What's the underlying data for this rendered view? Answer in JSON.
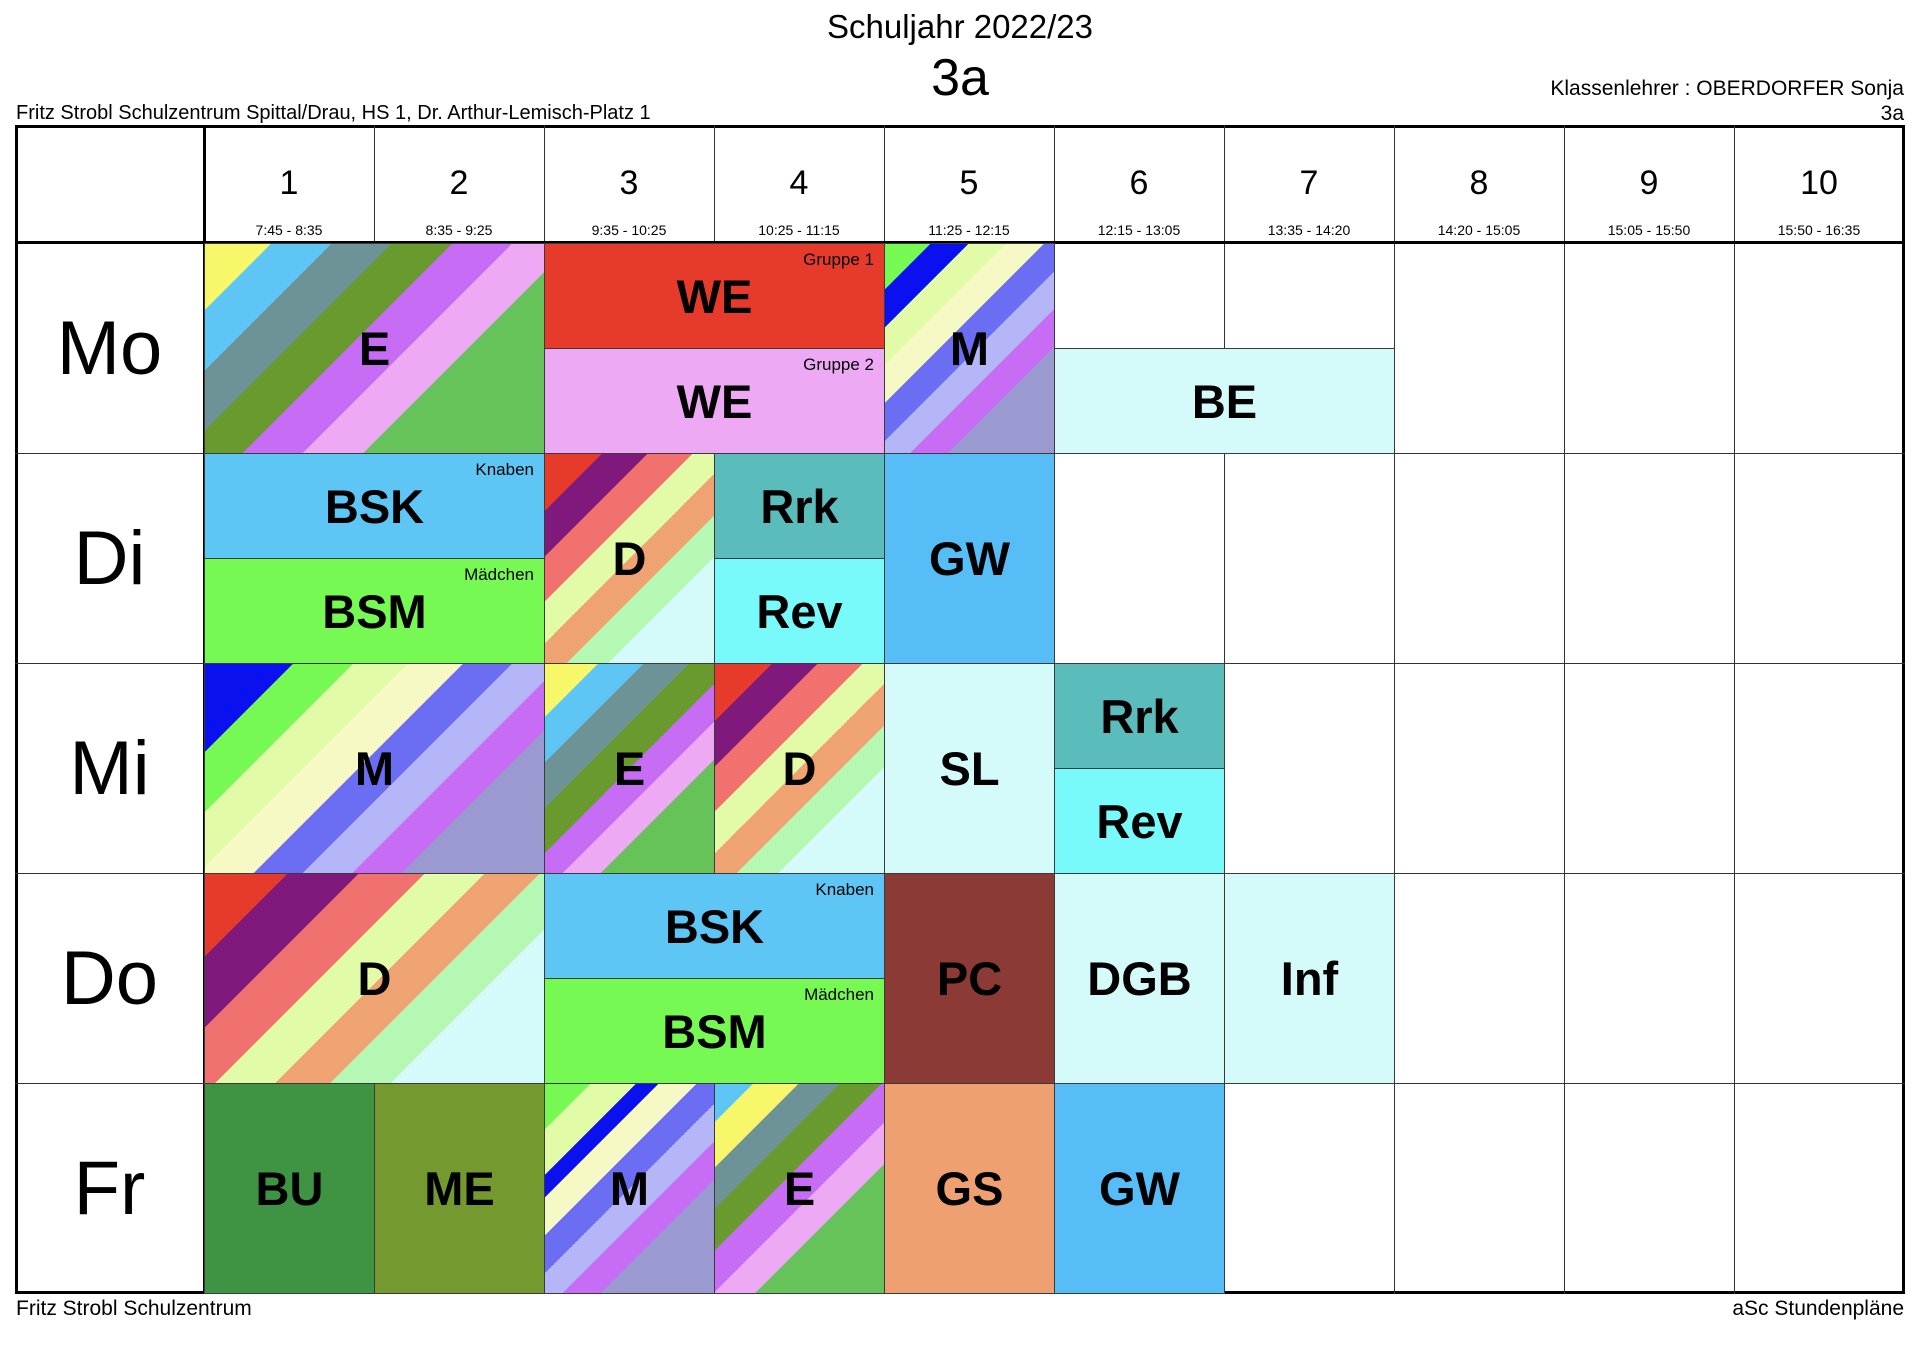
{
  "header": {
    "school_year": "Schuljahr 2022/23",
    "class_name": "3a",
    "school_address": "Fritz Strobl Schulzentrum Spittal/Drau, HS 1, Dr. Arthur-Lemisch-Platz 1",
    "class_teacher": "Klassenlehrer : OBERDORFER Sonja",
    "class_code": "3a"
  },
  "footer": {
    "left": "Fritz Strobl Schulzentrum",
    "right": "aSc Stundenpläne"
  },
  "periods": [
    {
      "num": "1",
      "time": "7:45 - 8:35"
    },
    {
      "num": "2",
      "time": "8:35 - 9:25"
    },
    {
      "num": "3",
      "time": "9:35 - 10:25"
    },
    {
      "num": "4",
      "time": "10:25 - 11:15"
    },
    {
      "num": "5",
      "time": "11:25 - 12:15"
    },
    {
      "num": "6",
      "time": "12:15 - 13:05"
    },
    {
      "num": "7",
      "time": "13:35 - 14:20"
    },
    {
      "num": "8",
      "time": "14:20 - 15:05"
    },
    {
      "num": "9",
      "time": "15:05 - 15:50"
    },
    {
      "num": "10",
      "time": "15:50 - 16:35"
    }
  ],
  "days": [
    "Mo",
    "Di",
    "Mi",
    "Do",
    "Fr"
  ],
  "groups": {
    "gruppe1": "Gruppe 1",
    "gruppe2": "Gruppe 2",
    "knaben": "Knaben",
    "maedchen": "Mädchen"
  },
  "lessons": {
    "mo_e": "E",
    "mo_we1": "WE",
    "mo_we2": "WE",
    "mo_m": "M",
    "mo_be": "BE",
    "di_bsk": "BSK",
    "di_bsm": "BSM",
    "di_d": "D",
    "di_rrk": "Rrk",
    "di_rev": "Rev",
    "di_gw": "GW",
    "mi_m": "M",
    "mi_e": "E",
    "mi_d": "D",
    "mi_sl": "SL",
    "mi_rrk": "Rrk",
    "mi_rev": "Rev",
    "do_d": "D",
    "do_bsk": "BSK",
    "do_bsm": "BSM",
    "do_pc": "PC",
    "do_dgb": "DGB",
    "do_inf": "Inf",
    "fr_bu": "BU",
    "fr_me": "ME",
    "fr_m": "M",
    "fr_e": "E",
    "fr_gs": "GS",
    "fr_gw": "GW"
  },
  "colors": {
    "we_group1": "#e63a2a",
    "we_group2": "#eea9f5",
    "be": "#d4fafa",
    "bsk": "#5ec6f5",
    "bsm": "#76f953",
    "rrk": "#5bbdbb",
    "rev": "#79fafa",
    "gw": "#56bdf6",
    "sl": "#d4fafa",
    "pc": "#8c3a36",
    "dgb": "#d4fafa",
    "inf": "#d4fafa",
    "bu": "#3f9444",
    "me": "#73992f",
    "gs": "#efa070"
  }
}
